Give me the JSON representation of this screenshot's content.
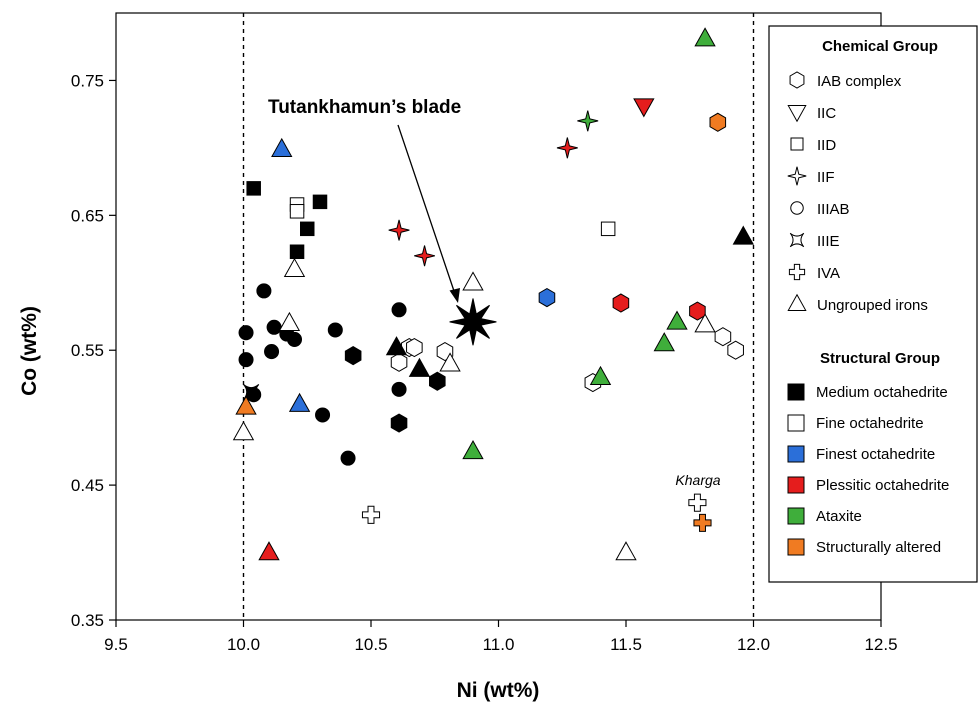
{
  "chart_data": {
    "type": "scatter",
    "xlabel": "Ni (wt%)",
    "ylabel": "Co (wt%)",
    "xlim": [
      9.5,
      12.5
    ],
    "ylim": [
      0.35,
      0.8
    ],
    "xticks": [
      9.5,
      10.0,
      10.5,
      11.0,
      11.5,
      12.0,
      12.5
    ],
    "xtick_labels": [
      "9.5",
      "10.0",
      "10.5",
      "11.0",
      "11.5",
      "12.0",
      "12.5"
    ],
    "yticks": [
      0.35,
      0.45,
      0.55,
      0.65,
      0.75
    ],
    "ytick_labels": [
      "0.35",
      "0.45",
      "0.55",
      "0.65",
      "0.75"
    ],
    "grid": false,
    "reference_lines_x": [
      10.0,
      12.0
    ],
    "annotations": [
      {
        "text": "Tutankhamun’s blade",
        "x": 10.85,
        "y": 0.585,
        "marker": "star8"
      },
      {
        "text": "Kharga",
        "x": 11.78,
        "y": 0.437
      }
    ],
    "colors": {
      "Medium octahedrite": "#000000",
      "Fine octahedrite": "#ffffff",
      "Finest octahedrite": "#2b6fd9",
      "Plessitic octahedrite": "#e51d1d",
      "Ataxite": "#3fae3b",
      "Structurally altered": "#f07b22"
    },
    "legend": {
      "position": "right",
      "chemical_title": "Chemical Group",
      "chemical": [
        {
          "label": "IAB complex",
          "marker": "hexagon"
        },
        {
          "label": "IIC",
          "marker": "triangle-down"
        },
        {
          "label": "IID",
          "marker": "square"
        },
        {
          "label": "IIF",
          "marker": "star4"
        },
        {
          "label": "IIIAB",
          "marker": "circle"
        },
        {
          "label": "IIIE",
          "marker": "concave"
        },
        {
          "label": "IVA",
          "marker": "cross"
        },
        {
          "label": "Ungrouped irons",
          "marker": "triangle"
        }
      ],
      "structural_title": "Structural Group",
      "structural": [
        {
          "label": "Medium octahedrite",
          "color": "#000000"
        },
        {
          "label": "Fine octahedrite",
          "color": "#ffffff"
        },
        {
          "label": "Finest octahedrite",
          "color": "#2b6fd9"
        },
        {
          "label": "Plessitic octahedrite",
          "color": "#e51d1d"
        },
        {
          "label": "Ataxite",
          "color": "#3fae3b"
        },
        {
          "label": "Structurally altered",
          "color": "#f07b22"
        }
      ]
    },
    "points": [
      {
        "x": 10.04,
        "y": 0.67,
        "marker": "square",
        "group": "Medium octahedrite"
      },
      {
        "x": 10.3,
        "y": 0.66,
        "marker": "square",
        "group": "Medium octahedrite"
      },
      {
        "x": 10.25,
        "y": 0.64,
        "marker": "square",
        "group": "Medium octahedrite"
      },
      {
        "x": 10.21,
        "y": 0.623,
        "marker": "square",
        "group": "Medium octahedrite"
      },
      {
        "x": 10.21,
        "y": 0.658,
        "marker": "square",
        "group": "Fine octahedrite"
      },
      {
        "x": 10.21,
        "y": 0.653,
        "marker": "square",
        "group": "Fine octahedrite"
      },
      {
        "x": 11.43,
        "y": 0.64,
        "marker": "square",
        "group": "Fine octahedrite"
      },
      {
        "x": 10.08,
        "y": 0.594,
        "marker": "circle",
        "group": "Medium octahedrite"
      },
      {
        "x": 10.01,
        "y": 0.563,
        "marker": "circle",
        "group": "Medium octahedrite"
      },
      {
        "x": 10.01,
        "y": 0.543,
        "marker": "circle",
        "group": "Medium octahedrite"
      },
      {
        "x": 10.12,
        "y": 0.567,
        "marker": "circle",
        "group": "Medium octahedrite"
      },
      {
        "x": 10.11,
        "y": 0.549,
        "marker": "circle",
        "group": "Medium octahedrite"
      },
      {
        "x": 10.17,
        "y": 0.562,
        "marker": "circle",
        "group": "Medium octahedrite"
      },
      {
        "x": 10.2,
        "y": 0.558,
        "marker": "circle",
        "group": "Medium octahedrite"
      },
      {
        "x": 10.04,
        "y": 0.517,
        "marker": "circle",
        "group": "Medium octahedrite"
      },
      {
        "x": 10.31,
        "y": 0.502,
        "marker": "circle",
        "group": "Medium octahedrite"
      },
      {
        "x": 10.36,
        "y": 0.565,
        "marker": "circle",
        "group": "Medium octahedrite"
      },
      {
        "x": 10.61,
        "y": 0.58,
        "marker": "circle",
        "group": "Medium octahedrite"
      },
      {
        "x": 10.61,
        "y": 0.521,
        "marker": "circle",
        "group": "Medium octahedrite"
      },
      {
        "x": 10.41,
        "y": 0.47,
        "marker": "circle",
        "group": "Medium octahedrite"
      },
      {
        "x": 10.43,
        "y": 0.546,
        "marker": "hexagon",
        "group": "Medium octahedrite"
      },
      {
        "x": 10.61,
        "y": 0.496,
        "marker": "hexagon",
        "group": "Medium octahedrite"
      },
      {
        "x": 10.76,
        "y": 0.527,
        "marker": "hexagon",
        "group": "Medium octahedrite"
      },
      {
        "x": 10.61,
        "y": 0.541,
        "marker": "hexagon",
        "group": "Fine octahedrite"
      },
      {
        "x": 10.65,
        "y": 0.552,
        "marker": "hexagon",
        "group": "Fine octahedrite"
      },
      {
        "x": 10.67,
        "y": 0.552,
        "marker": "hexagon",
        "group": "Fine octahedrite"
      },
      {
        "x": 10.79,
        "y": 0.549,
        "marker": "hexagon",
        "group": "Fine octahedrite"
      },
      {
        "x": 11.37,
        "y": 0.526,
        "marker": "hexagon",
        "group": "Fine octahedrite"
      },
      {
        "x": 11.88,
        "y": 0.56,
        "marker": "hexagon",
        "group": "Fine octahedrite"
      },
      {
        "x": 11.93,
        "y": 0.55,
        "marker": "hexagon",
        "group": "Fine octahedrite"
      },
      {
        "x": 11.19,
        "y": 0.589,
        "marker": "hexagon",
        "group": "Finest octahedrite"
      },
      {
        "x": 11.48,
        "y": 0.585,
        "marker": "hexagon",
        "group": "Plessitic octahedrite"
      },
      {
        "x": 11.78,
        "y": 0.579,
        "marker": "hexagon",
        "group": "Plessitic octahedrite"
      },
      {
        "x": 11.86,
        "y": 0.719,
        "marker": "hexagon",
        "group": "Structurally altered"
      },
      {
        "x": 11.57,
        "y": 0.731,
        "marker": "triangle-down",
        "group": "Plessitic octahedrite"
      },
      {
        "x": 11.35,
        "y": 0.72,
        "marker": "star4",
        "group": "Ataxite"
      },
      {
        "x": 11.27,
        "y": 0.7,
        "marker": "star4",
        "group": "Plessitic octahedrite"
      },
      {
        "x": 10.61,
        "y": 0.639,
        "marker": "star4",
        "group": "Plessitic octahedrite"
      },
      {
        "x": 10.71,
        "y": 0.62,
        "marker": "star4",
        "group": "Plessitic octahedrite"
      },
      {
        "x": 10.03,
        "y": 0.519,
        "marker": "concave",
        "group": "Medium octahedrite"
      },
      {
        "x": 10.5,
        "y": 0.428,
        "marker": "cross",
        "group": "Fine octahedrite"
      },
      {
        "x": 11.78,
        "y": 0.437,
        "marker": "cross",
        "group": "Fine octahedrite"
      },
      {
        "x": 11.8,
        "y": 0.422,
        "marker": "cross",
        "group": "Structurally altered"
      },
      {
        "x": 11.81,
        "y": 0.781,
        "marker": "triangle",
        "group": "Ataxite"
      },
      {
        "x": 11.96,
        "y": 0.634,
        "marker": "triangle",
        "group": "Medium octahedrite"
      },
      {
        "x": 10.15,
        "y": 0.699,
        "marker": "triangle",
        "group": "Finest octahedrite"
      },
      {
        "x": 10.2,
        "y": 0.61,
        "marker": "triangle",
        "group": "Fine octahedrite"
      },
      {
        "x": 10.18,
        "y": 0.57,
        "marker": "triangle",
        "group": "Fine octahedrite"
      },
      {
        "x": 10.6,
        "y": 0.552,
        "marker": "triangle",
        "group": "Medium octahedrite"
      },
      {
        "x": 10.69,
        "y": 0.536,
        "marker": "triangle",
        "group": "Medium octahedrite"
      },
      {
        "x": 10.9,
        "y": 0.6,
        "marker": "triangle",
        "group": "Fine octahedrite"
      },
      {
        "x": 10.81,
        "y": 0.54,
        "marker": "triangle",
        "group": "Fine octahedrite"
      },
      {
        "x": 10.22,
        "y": 0.51,
        "marker": "triangle",
        "group": "Finest octahedrite"
      },
      {
        "x": 10.01,
        "y": 0.508,
        "marker": "triangle",
        "group": "Structurally altered"
      },
      {
        "x": 10.0,
        "y": 0.489,
        "marker": "triangle",
        "group": "Fine octahedrite"
      },
      {
        "x": 10.9,
        "y": 0.475,
        "marker": "triangle",
        "group": "Ataxite"
      },
      {
        "x": 11.4,
        "y": 0.53,
        "marker": "triangle",
        "group": "Ataxite"
      },
      {
        "x": 11.7,
        "y": 0.571,
        "marker": "triangle",
        "group": "Ataxite"
      },
      {
        "x": 11.65,
        "y": 0.555,
        "marker": "triangle",
        "group": "Ataxite"
      },
      {
        "x": 11.81,
        "y": 0.569,
        "marker": "triangle",
        "group": "Fine octahedrite"
      },
      {
        "x": 11.5,
        "y": 0.4,
        "marker": "triangle",
        "group": "Fine octahedrite"
      },
      {
        "x": 10.1,
        "y": 0.4,
        "marker": "triangle",
        "group": "Plessitic octahedrite"
      },
      {
        "x": 10.9,
        "y": 0.571,
        "marker": "star8",
        "group": "Tutankhamun’s blade"
      }
    ]
  }
}
